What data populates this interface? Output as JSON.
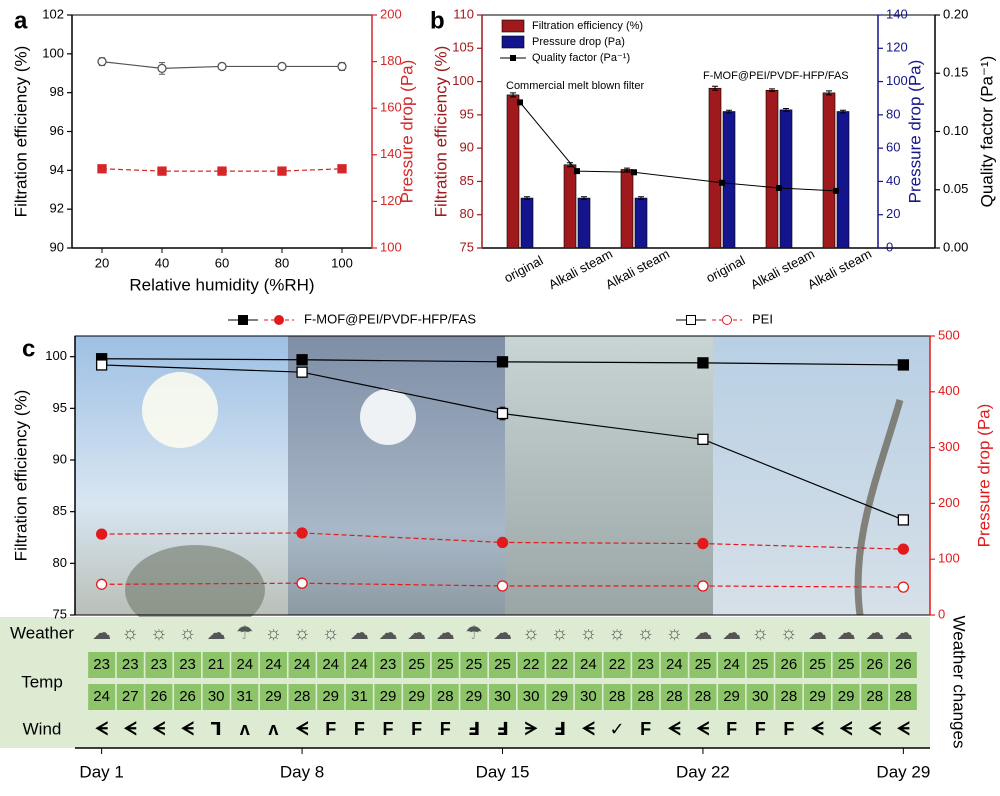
{
  "chart_data": [
    {
      "type": "line",
      "panel": "a",
      "xlabel": "Relative humidity (%RH)",
      "ylabel": "Filtration efficiency (%)",
      "y2label": "Pressure drop (Pa)",
      "x": [
        20,
        40,
        60,
        80,
        100
      ],
      "xlim": [
        10,
        110
      ],
      "xticks": [
        20,
        40,
        60,
        80,
        100
      ],
      "ylim": [
        90,
        102
      ],
      "yticks": [
        90,
        92,
        94,
        96,
        98,
        100,
        102
      ],
      "y2lim": [
        100,
        200
      ],
      "y2ticks": [
        100,
        120,
        140,
        160,
        180,
        200
      ],
      "series": [
        {
          "name": "Filtration efficiency",
          "color": "#555555",
          "marker": "circle",
          "filled": false,
          "dashed": false,
          "values": [
            99.6,
            99.25,
            99.35,
            99.35,
            99.35
          ],
          "errors": [
            0.2,
            0.3,
            0.1,
            0.1,
            0.2
          ]
        },
        {
          "name": "Pressure drop",
          "color": "#d62728",
          "marker": "square",
          "filled": true,
          "dashed": true,
          "axis": "y2",
          "values": [
            134,
            133,
            133,
            133,
            134
          ],
          "errors": [
            0.8,
            0.8,
            0.8,
            0.8,
            0.8
          ]
        }
      ]
    },
    {
      "type": "bar",
      "panel": "b",
      "ylabel": "Filtration efficiency (%)",
      "y2label": "Pressure drop (Pa)",
      "y3label": "Quality factor (Pa⁻¹)",
      "categories": [
        "original",
        "Alkali steam",
        "Alkali steam",
        "original",
        "Alkali steam",
        "Alkali steam"
      ],
      "annotations": [
        "Commercial melt blown filter",
        "F-MOF@PEI/PVDF-HFP/FAS"
      ],
      "ylim": [
        75,
        110
      ],
      "yticks": [
        75,
        80,
        85,
        90,
        95,
        100,
        105,
        110
      ],
      "y2lim": [
        0,
        140
      ],
      "y2ticks": [
        0,
        20,
        40,
        60,
        80,
        100,
        120,
        140
      ],
      "y3lim": [
        0,
        0.2
      ],
      "y3ticks": [
        {
          "value": 0,
          "label": "0.00"
        },
        0.05,
        {
          "value": 0.1,
          "label": "0.10"
        },
        0.15,
        {
          "value": 0.2,
          "label": "0.20"
        }
      ],
      "legend": "upper left",
      "series": [
        {
          "name": "Filtration efficiency (%)",
          "color": "#a0191c",
          "values": [
            98,
            87.5,
            86.8,
            99,
            98.7,
            98.3
          ],
          "errors": [
            0.3,
            0.3,
            0.2,
            0.3,
            0.2,
            0.3
          ]
        },
        {
          "name": "Pressure drop (Pa)",
          "color": "#14148c",
          "axis": "y2",
          "values": [
            30,
            30,
            30,
            82,
            83,
            82
          ],
          "errors": [
            0.8,
            0.8,
            0.8,
            0.8,
            0.8,
            0.8
          ]
        },
        {
          "name": "Quality factor (Pa⁻¹)",
          "color": "#000000",
          "axis": "y3",
          "kind": "line",
          "values": [
            0.125,
            0.066,
            0.065,
            0.056,
            0.0515,
            0.049
          ]
        }
      ]
    },
    {
      "type": "line",
      "panel": "c",
      "ylabel": "Filtration efficiency (%)",
      "y2label": "Pressure drop (Pa)",
      "x": [
        1,
        8,
        15,
        22,
        29
      ],
      "xlim": [
        0,
        30
      ],
      "xticks": [
        {
          "value": 1,
          "label": "Day 1"
        },
        {
          "value": 8,
          "label": "Day 8"
        },
        {
          "value": 15,
          "label": "Day 15"
        },
        {
          "value": 22,
          "label": "Day 22"
        },
        {
          "value": 29,
          "label": "Day 29"
        }
      ],
      "ylim": [
        75,
        102
      ],
      "yticks": [
        75,
        80,
        85,
        90,
        95,
        100
      ],
      "y2lim": [
        0,
        500
      ],
      "y2ticks": [
        0,
        100,
        200,
        300,
        400,
        500
      ],
      "series": [
        {
          "name": "F-MOF@PEI/PVDF-HFP/FAS",
          "color": "#000000",
          "marker": "square",
          "filled": true,
          "dashed": false,
          "values": [
            99.8,
            99.7,
            99.5,
            99.4,
            99.2
          ],
          "errors": [
            0.2,
            0.3,
            0.2,
            0.3,
            0.3
          ]
        },
        {
          "name": "F-MOF@PEI/PVDF-HFP/FAS",
          "color": "#e31a1c",
          "marker": "circle",
          "filled": true,
          "dashed": true,
          "axis": "y2",
          "values": [
            145,
            147,
            130,
            128,
            118
          ],
          "errors": [
            3,
            3,
            3,
            3,
            3
          ]
        },
        {
          "name": "PEI",
          "color": "#000000",
          "marker": "square",
          "filled": false,
          "dashed": false,
          "values": [
            99.2,
            98.5,
            94.5,
            92,
            84.2
          ],
          "errors": [
            0.3,
            0.4,
            0.6,
            0.3,
            0.4
          ]
        },
        {
          "name": "PEI",
          "color": "#e31a1c",
          "marker": "circle",
          "filled": false,
          "dashed": true,
          "axis": "y2",
          "values": [
            55,
            57,
            52,
            52,
            50
          ],
          "errors": [
            2,
            2,
            2,
            2,
            2
          ]
        }
      ]
    }
  ],
  "weather_table": {
    "side_label": "Weather changes",
    "rows": [
      {
        "label": "Weather",
        "cells": [
          "☁",
          "☼",
          "☼",
          "☼",
          "☁",
          "☂",
          "☼",
          "☼",
          "☼",
          "☁",
          "☁",
          "☁",
          "☁",
          "☂",
          "☁",
          "☼",
          "☼",
          "☼",
          "☼",
          "☼",
          "☼",
          "☁",
          "☁",
          "☼",
          "☼",
          "☁",
          "☁",
          "☁",
          "☁"
        ]
      },
      {
        "label": "Temp",
        "cells": [
          23,
          23,
          23,
          23,
          21,
          24,
          24,
          24,
          24,
          24,
          23,
          25,
          25,
          25,
          25,
          22,
          22,
          24,
          22,
          23,
          24,
          25,
          24,
          25,
          26,
          25,
          25,
          26,
          26
        ],
        "cells2": [
          24,
          27,
          26,
          26,
          30,
          31,
          29,
          28,
          29,
          31,
          29,
          29,
          28,
          29,
          30,
          30,
          29,
          30,
          28,
          28,
          28,
          28,
          29,
          30,
          28,
          29,
          29,
          28,
          28
        ]
      },
      {
        "label": "Wind",
        "cells": [
          "ᗕ",
          "ᗕ",
          "ᗕ",
          "ᗕ",
          "ᒣ",
          "ʌ",
          "ʌ",
          "ᗕ",
          "F",
          "F",
          "F",
          "F",
          "F",
          "Ⅎ",
          "Ⅎ",
          "ᗒ",
          "Ⅎ",
          "ᗕ",
          "✓",
          "F",
          "ᗕ",
          "ᗕ",
          "F",
          "F",
          "F",
          "ᗕ",
          "ᗕ",
          "ᗕ",
          "ᗕ"
        ]
      }
    ]
  },
  "panel_labels": [
    "a",
    "b",
    "c"
  ]
}
